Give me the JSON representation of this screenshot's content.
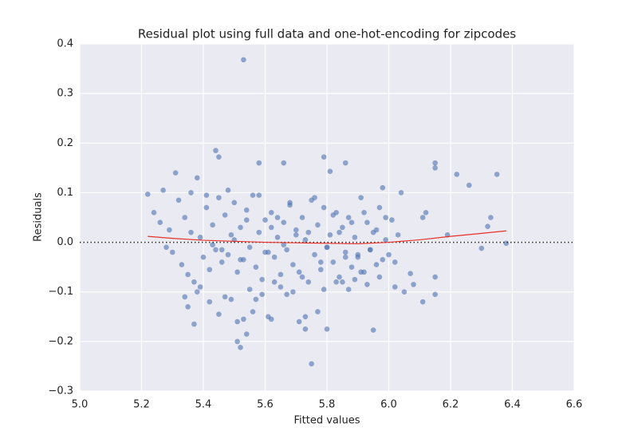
{
  "chart_data": {
    "type": "scatter",
    "title": "Residual plot using full data and one-hot-encoding for zipcodes",
    "xlabel": "Fitted values",
    "ylabel": "Residuals",
    "xlim": [
      5.0,
      6.6
    ],
    "ylim": [
      -0.3,
      0.4
    ],
    "xticks": [
      {
        "value": 5.0,
        "label": "5.0"
      },
      5.2,
      5.4,
      5.6,
      5.8,
      {
        "value": 6.0,
        "label": "6.0"
      },
      6.2,
      6.4,
      6.6
    ],
    "yticks": [
      {
        "value": -0.3,
        "label": "−0.3"
      },
      {
        "value": -0.2,
        "label": "−0.2"
      },
      {
        "value": -0.1,
        "label": "−0.1"
      },
      {
        "value": 0,
        "label": "0.0"
      },
      0.1,
      0.2,
      0.3,
      0.4
    ],
    "grid": true,
    "zero_line": 0,
    "points": {
      "color": "#4c72b0",
      "x": [
        5.53,
        5.75,
        5.52,
        5.51,
        5.37,
        5.95,
        5.8,
        5.73,
        6.38,
        6.35,
        6.22,
        6.15,
        6.15,
        6.26,
        6.33,
        6.32,
        6.3,
        6.19,
        6.15,
        6.15,
        6.11,
        6.08,
        6.07,
        6.05,
        6.12,
        6.11,
        5.22,
        5.24,
        5.27,
        5.31,
        5.44,
        5.45,
        5.58,
        5.66,
        5.79,
        5.81,
        5.86,
        5.98,
        6.04,
        5.26,
        5.28,
        5.29,
        5.3,
        5.32,
        5.33,
        5.34,
        5.35,
        5.36,
        5.37,
        5.38,
        5.39,
        5.4,
        5.41,
        5.42,
        5.43,
        5.44,
        5.45,
        5.46,
        5.47,
        5.48,
        5.49,
        5.5,
        5.51,
        5.52,
        5.53,
        5.54,
        5.55,
        5.56,
        5.57,
        5.58,
        5.59,
        5.6,
        5.61,
        5.62,
        5.63,
        5.64,
        5.65,
        5.66,
        5.67,
        5.68,
        5.69,
        5.7,
        5.71,
        5.72,
        5.73,
        5.74,
        5.75,
        5.76,
        5.77,
        5.78,
        5.79,
        5.8,
        5.81,
        5.82,
        5.83,
        5.84,
        5.85,
        5.86,
        5.87,
        5.88,
        5.89,
        5.9,
        5.91,
        5.92,
        5.93,
        5.94,
        5.95,
        5.96,
        5.97,
        5.98,
        5.99,
        6.0,
        6.01,
        6.02,
        6.03,
        5.34,
        5.36,
        5.38,
        5.41,
        5.43,
        5.46,
        5.48,
        5.5,
        5.52,
        5.54,
        5.56,
        5.58,
        5.6,
        5.62,
        5.64,
        5.66,
        5.68,
        5.7,
        5.72,
        5.74,
        5.76,
        5.78,
        5.8,
        5.82,
        5.84,
        5.86,
        5.88,
        5.9,
        5.92,
        5.94,
        5.96,
        5.99,
        5.45,
        5.49,
        5.55,
        5.57,
        5.61,
        5.63,
        5.69,
        5.71,
        5.77,
        5.83,
        5.87,
        5.91,
        5.35,
        5.39,
        5.42,
        5.47,
        5.53,
        5.59,
        5.65,
        5.67,
        5.73,
        5.79,
        5.85,
        5.89,
        5.93,
        5.97,
        6.02,
        5.54,
        5.62,
        5.51
      ],
      "values": [
        0.368,
        -0.245,
        -0.212,
        -0.2,
        -0.165,
        -0.177,
        -0.175,
        -0.175,
        -0.002,
        0.137,
        0.137,
        0.16,
        0.15,
        0.115,
        0.05,
        0.032,
        -0.012,
        0.015,
        -0.07,
        -0.105,
        -0.12,
        -0.085,
        -0.063,
        -0.1,
        0.06,
        0.05,
        0.097,
        0.06,
        0.105,
        0.14,
        0.185,
        0.172,
        0.16,
        0.16,
        0.172,
        0.143,
        0.16,
        0.11,
        0.1,
        0.04,
        -0.01,
        0.025,
        -0.02,
        0.085,
        -0.045,
        0.05,
        -0.065,
        0.02,
        -0.08,
        0.13,
        0.01,
        -0.03,
        0.07,
        -0.055,
        0.035,
        -0.015,
        0.09,
        -0.04,
        0.055,
        -0.025,
        0.015,
        0.08,
        -0.06,
        0.03,
        -0.035,
        0.065,
        -0.01,
        0.095,
        -0.05,
        0.02,
        -0.075,
        0.045,
        -0.02,
        0.06,
        -0.03,
        0.01,
        -0.09,
        0.04,
        -0.015,
        0.075,
        -0.045,
        0.025,
        -0.06,
        0.05,
        0.005,
        -0.08,
        0.085,
        -0.025,
        0.035,
        -0.055,
        0.07,
        -0.01,
        0.015,
        -0.04,
        0.06,
        -0.07,
        0.03,
        -0.02,
        0.05,
        -0.05,
        0.01,
        -0.03,
        0.09,
        -0.06,
        0.04,
        -0.015,
        0.02,
        -0.045,
        0.07,
        -0.035,
        0.005,
        -0.025,
        0.045,
        -0.04,
        0.015,
        -0.11,
        0.1,
        -0.1,
        0.095,
        -0.005,
        -0.015,
        0.105,
        0.005,
        -0.035,
        0.045,
        -0.14,
        0.095,
        -0.02,
        0.03,
        0.05,
        -0.005,
        0.08,
        0.015,
        -0.07,
        0.02,
        0.09,
        -0.04,
        -0.01,
        0.055,
        0.02,
        -0.03,
        0.04,
        -0.025,
        0.06,
        -0.015,
        0.025,
        0.05,
        -0.145,
        -0.115,
        -0.095,
        -0.115,
        -0.15,
        -0.08,
        -0.1,
        -0.16,
        -0.14,
        -0.08,
        -0.095,
        -0.06,
        -0.13,
        -0.09,
        -0.12,
        -0.11,
        -0.155,
        -0.105,
        -0.065,
        -0.105,
        -0.15,
        -0.095,
        -0.08,
        -0.075,
        -0.085,
        -0.07,
        -0.09,
        -0.185,
        -0.155,
        -0.16
      ]
    },
    "fit_line": {
      "color": "#e8302a",
      "x": [
        5.22,
        5.3,
        5.4,
        5.5,
        5.6,
        5.7,
        5.8,
        5.9,
        6.0,
        6.1,
        6.2,
        6.3,
        6.38
      ],
      "values": [
        0.012,
        0.008,
        0.004,
        0.002,
        0.0,
        -0.001,
        -0.002,
        -0.003,
        0.0,
        0.005,
        0.012,
        0.018,
        0.023
      ]
    }
  }
}
